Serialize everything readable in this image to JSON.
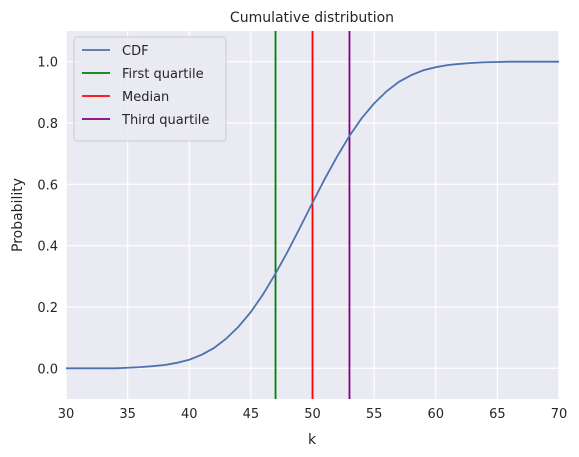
{
  "chart_data": {
    "type": "line",
    "title": "Cumulative distribution",
    "xlabel": "k",
    "ylabel": "Probability",
    "xlim": [
      30,
      70
    ],
    "ylim": [
      -0.1,
      1.1
    ],
    "xticks": [
      "30",
      "35",
      "40",
      "45",
      "50",
      "55",
      "60",
      "65",
      "70"
    ],
    "yticks": [
      "0.0",
      "0.2",
      "0.4",
      "0.6",
      "0.8",
      "1.0"
    ],
    "grid": true,
    "legend_position": "top-left",
    "series": [
      {
        "name": "CDF",
        "color": "#4c72b0",
        "x": [
          30,
          31,
          32,
          33,
          34,
          35,
          36,
          37,
          38,
          39,
          40,
          41,
          42,
          43,
          44,
          45,
          46,
          47,
          48,
          49,
          50,
          51,
          52,
          53,
          54,
          55,
          56,
          57,
          58,
          59,
          60,
          61,
          62,
          63,
          64,
          65,
          66,
          67,
          68,
          69,
          70
        ],
        "y": [
          0.0,
          0.0,
          0.0,
          0.0,
          0.0,
          0.002,
          0.004,
          0.007,
          0.011,
          0.018,
          0.028,
          0.044,
          0.066,
          0.097,
          0.136,
          0.184,
          0.242,
          0.309,
          0.382,
          0.46,
          0.54,
          0.618,
          0.691,
          0.758,
          0.816,
          0.864,
          0.903,
          0.934,
          0.956,
          0.972,
          0.982,
          0.989,
          0.993,
          0.996,
          0.998,
          0.999,
          1.0,
          1.0,
          1.0,
          1.0,
          1.0
        ]
      }
    ],
    "vlines": [
      {
        "name": "First quartile",
        "x": 47,
        "color": "#008000"
      },
      {
        "name": "Median",
        "x": 50,
        "color": "#ff0000"
      },
      {
        "name": "Third quartile",
        "x": 53,
        "color": "#800080"
      }
    ]
  }
}
